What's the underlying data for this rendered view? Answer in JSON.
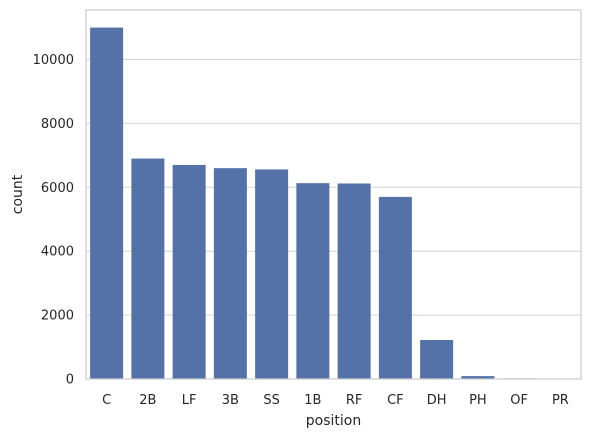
{
  "chart_data": {
    "type": "bar",
    "title": "",
    "xlabel": "position",
    "ylabel": "count",
    "categories": [
      "C",
      "2B",
      "LF",
      "3B",
      "SS",
      "1B",
      "RF",
      "CF",
      "DH",
      "PH",
      "OF",
      "PR"
    ],
    "values": [
      11000,
      6900,
      6700,
      6600,
      6560,
      6130,
      6120,
      5700,
      1220,
      90,
      20,
      15
    ],
    "ylim": [
      0,
      11550
    ],
    "yticks": [
      0,
      2000,
      4000,
      6000,
      8000,
      10000
    ],
    "grid": true,
    "bar_color": "#5572a8",
    "grid_color": "#d3d3d3",
    "axes_edge_color": "#cccccc"
  }
}
